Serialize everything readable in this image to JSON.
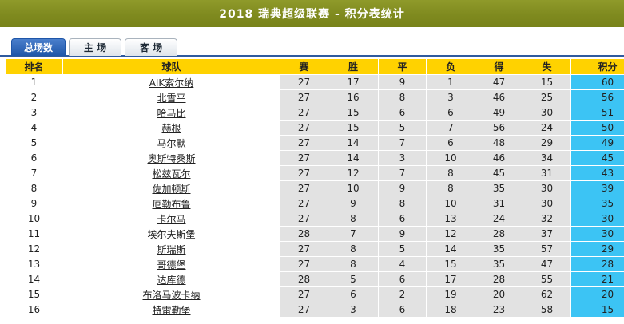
{
  "title": "2018 瑞典超级联赛 - 积分表统计",
  "tabs": [
    {
      "label": "总场数",
      "active": true
    },
    {
      "label": "主 场",
      "active": false
    },
    {
      "label": "客 场",
      "active": false
    }
  ],
  "table": {
    "headers": [
      "排名",
      "球队",
      "赛",
      "胜",
      "平",
      "负",
      "得",
      "失",
      "积分"
    ],
    "rows": [
      [
        "1",
        "AIK索尔纳",
        "27",
        "17",
        "9",
        "1",
        "47",
        "15",
        "60"
      ],
      [
        "2",
        "北雪平",
        "27",
        "16",
        "8",
        "3",
        "46",
        "25",
        "56"
      ],
      [
        "3",
        "哈马比",
        "27",
        "15",
        "6",
        "6",
        "49",
        "30",
        "51"
      ],
      [
        "4",
        "赫根",
        "27",
        "15",
        "5",
        "7",
        "56",
        "24",
        "50"
      ],
      [
        "5",
        "马尔默",
        "27",
        "14",
        "7",
        "6",
        "48",
        "29",
        "49"
      ],
      [
        "6",
        "奥斯特桑斯",
        "27",
        "14",
        "3",
        "10",
        "46",
        "34",
        "45"
      ],
      [
        "7",
        "松兹瓦尔",
        "27",
        "12",
        "7",
        "8",
        "45",
        "31",
        "43"
      ],
      [
        "8",
        "佐加顿斯",
        "27",
        "10",
        "9",
        "8",
        "35",
        "30",
        "39"
      ],
      [
        "9",
        "厄勒布鲁",
        "27",
        "9",
        "8",
        "10",
        "31",
        "30",
        "35"
      ],
      [
        "10",
        "卡尔马",
        "27",
        "8",
        "6",
        "13",
        "24",
        "32",
        "30"
      ],
      [
        "11",
        "埃尔夫斯堡",
        "28",
        "7",
        "9",
        "12",
        "28",
        "37",
        "30"
      ],
      [
        "12",
        "斯瑞斯",
        "27",
        "8",
        "5",
        "14",
        "35",
        "57",
        "29"
      ],
      [
        "13",
        "哥德堡",
        "27",
        "8",
        "4",
        "15",
        "35",
        "47",
        "28"
      ],
      [
        "14",
        "达库德",
        "28",
        "5",
        "6",
        "17",
        "28",
        "55",
        "21"
      ],
      [
        "15",
        "布洛马波卡纳",
        "27",
        "6",
        "2",
        "19",
        "20",
        "62",
        "20"
      ],
      [
        "16",
        "特雷勒堡",
        "27",
        "3",
        "6",
        "18",
        "23",
        "58",
        "15"
      ]
    ]
  },
  "colors": {
    "title_bar": "#7f8a1f",
    "header_bg": "#ffd200",
    "stat_cell": "#e2e2e2",
    "points_cell": "#3cc4f4",
    "active_tab": "#1f56a8"
  }
}
